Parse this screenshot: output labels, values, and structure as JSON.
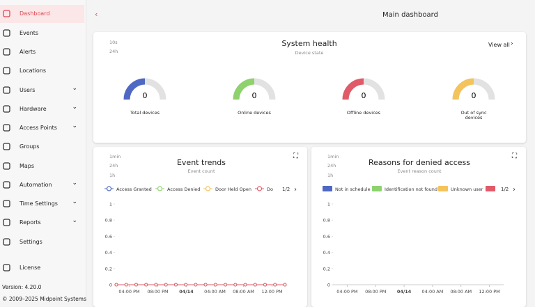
{
  "sidebar": {
    "items": [
      {
        "label": "Dashboard",
        "active": true
      },
      {
        "label": "Events"
      },
      {
        "label": "Alerts"
      },
      {
        "label": "Locations"
      },
      {
        "label": "Users",
        "expandable": true
      },
      {
        "label": "Hardware",
        "expandable": true
      },
      {
        "label": "Access Points",
        "expandable": true
      },
      {
        "label": "Groups"
      },
      {
        "label": "Maps"
      },
      {
        "label": "Automation",
        "expandable": true
      },
      {
        "label": "Time Settings",
        "expandable": true
      },
      {
        "label": "Reports",
        "expandable": true
      },
      {
        "label": "Settings"
      }
    ],
    "license": "License",
    "version": "Version: 4.20.0",
    "copyright": "© 2009–2025 Midpoint Systems"
  },
  "header": {
    "title": "Main dashboard"
  },
  "system_health": {
    "title": "System health",
    "subtitle": "Device state",
    "refresh": "10s",
    "range": "24h",
    "view_all": "View all",
    "gauges": [
      {
        "value": 0,
        "label": "Total devices",
        "color": "#4f68c4"
      },
      {
        "value": 0,
        "label": "Online devices",
        "color": "#8ed26e"
      },
      {
        "value": 0,
        "label": "Offline devices",
        "color": "#e15a68"
      },
      {
        "value": 0,
        "label": "Out of sync devices",
        "color": "#f4c35c"
      }
    ]
  },
  "event_trends": {
    "type": "line",
    "title": "Event trends",
    "subtitle": "Event count",
    "refresh": "1min",
    "range": "24h",
    "interval": "1h",
    "page": "1/2",
    "series": [
      {
        "name": "Access Granted",
        "color": "#4f68c4",
        "values": [
          0,
          0,
          0,
          0,
          0,
          0,
          0,
          0,
          0,
          0,
          0,
          0,
          0,
          0,
          0,
          0,
          0,
          0
        ]
      },
      {
        "name": "Access Denied",
        "color": "#8ed26e",
        "values": [
          0,
          0,
          0,
          0,
          0,
          0,
          0,
          0,
          0,
          0,
          0,
          0,
          0,
          0,
          0,
          0,
          0,
          0
        ]
      },
      {
        "name": "Door Held Open",
        "color": "#f4c35c",
        "values": [
          0,
          0,
          0,
          0,
          0,
          0,
          0,
          0,
          0,
          0,
          0,
          0,
          0,
          0,
          0,
          0,
          0,
          0
        ]
      },
      {
        "name": "Do",
        "color": "#e15a68",
        "values": [
          0,
          0,
          0,
          0,
          0,
          0,
          0,
          0,
          0,
          0,
          0,
          0,
          0,
          0,
          0,
          0,
          0,
          0
        ]
      }
    ],
    "xticks": [
      "04:00 PM",
      "08:00 PM",
      "04/14",
      "04:00 AM",
      "08:00 AM",
      "12:00 PM"
    ],
    "ylim": [
      0,
      1
    ],
    "yticks": [
      0,
      0.2,
      0.4,
      0.6,
      0.8,
      1
    ]
  },
  "denied_reasons": {
    "type": "bar",
    "title": "Reasons for denied access",
    "subtitle": "Event reason count",
    "refresh": "1min",
    "range": "24h",
    "interval": "1h",
    "page": "1/2",
    "series": [
      {
        "name": "Not in schedule",
        "color": "#4f68c4"
      },
      {
        "name": "Identification not found",
        "color": "#8ed26e"
      },
      {
        "name": "Unknown user",
        "color": "#f4c35c"
      },
      {
        "color": "#e15a68"
      }
    ],
    "xticks": [
      "04:00 PM",
      "08:00 PM",
      "04/14",
      "04:00 AM",
      "08:00 AM",
      "12:00 PM"
    ],
    "ylim": [
      0,
      1
    ],
    "yticks": [
      0,
      0.2,
      0.4,
      0.6,
      0.8,
      1
    ]
  }
}
